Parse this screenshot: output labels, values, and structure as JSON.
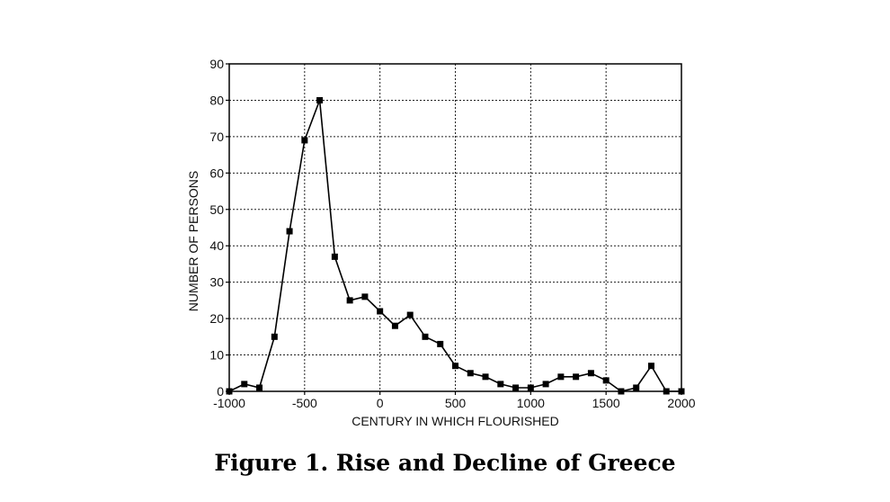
{
  "caption": "Figure 1. Rise and Decline of Greece",
  "chart_data": {
    "type": "line",
    "title": "",
    "xlabel": "CENTURY IN WHICH FLOURISHED",
    "ylabel": "NUMBER OF PERSONS",
    "xlim": [
      -1000,
      2000
    ],
    "ylim": [
      0,
      90
    ],
    "xticks": [
      -1000,
      -500,
      0,
      500,
      1000,
      1500,
      2000
    ],
    "yticks": [
      0,
      10,
      20,
      30,
      40,
      50,
      60,
      70,
      80,
      90
    ],
    "grid": true,
    "grid_style": "dotted",
    "marker": "square",
    "series": [
      {
        "x": [
          -1000,
          -900,
          -800,
          -700,
          -600,
          -500,
          -400,
          -300,
          -200,
          -100,
          0,
          100,
          200,
          300,
          400,
          500,
          600,
          700,
          800,
          900,
          1000,
          1100,
          1200,
          1300,
          1400,
          1500,
          1600,
          1700,
          1800,
          1900,
          2000
        ],
        "y": [
          0,
          2,
          1,
          15,
          44,
          69,
          80,
          37,
          25,
          26,
          22,
          18,
          21,
          15,
          13,
          7,
          5,
          4,
          2,
          1,
          1,
          2,
          4,
          4,
          5,
          3,
          0,
          1,
          7,
          0,
          0
        ]
      }
    ]
  }
}
